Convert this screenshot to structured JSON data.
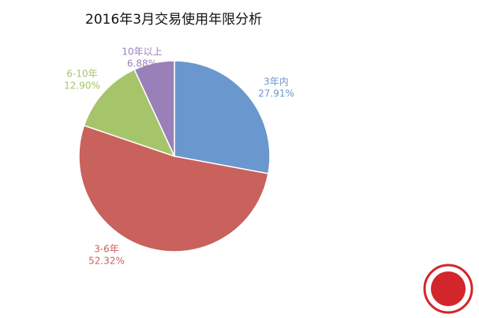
{
  "chart_data": {
    "type": "pie",
    "title": "2016年3月交易使用年限分析",
    "categories": [
      "3年内",
      "3-6年",
      "6-10年",
      "10年以上"
    ],
    "values": [
      27.91,
      52.32,
      12.9,
      6.88
    ],
    "value_labels": [
      "27.91%",
      "52.32%",
      "12.90%",
      "6.88%"
    ],
    "colors": [
      "#6a97cd",
      "#c9615c",
      "#a6c46a",
      "#9a80b8"
    ]
  }
}
